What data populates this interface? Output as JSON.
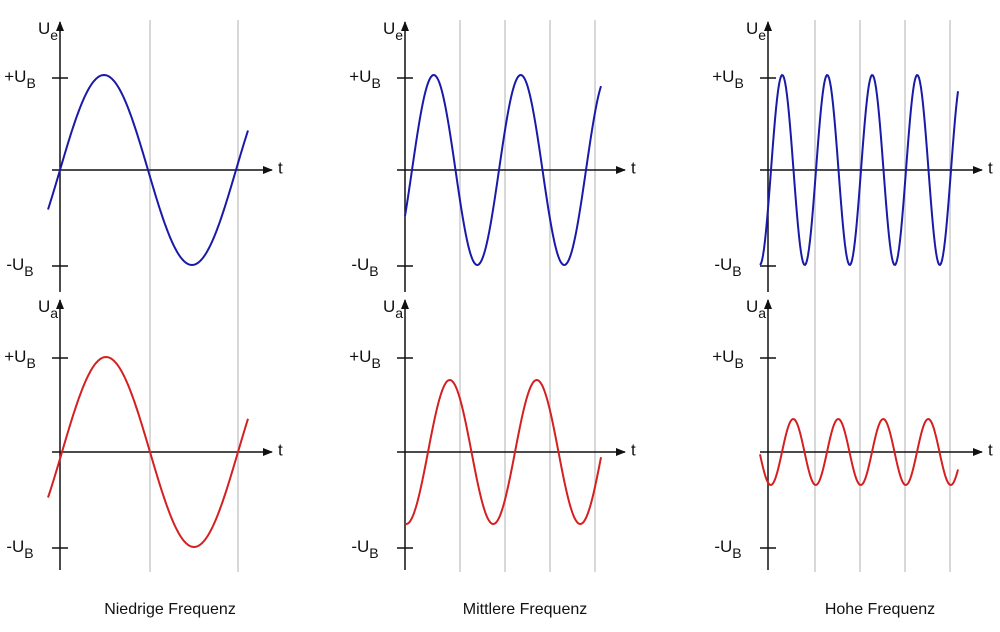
{
  "columns": [
    {
      "caption": "Niedrige Frequenz",
      "input": {
        "axis_label": {
          "main": "U",
          "sub": "e"
        },
        "top_label": {
          "main": "+U",
          "sub": "B"
        },
        "bottom_label": {
          "main": "-U",
          "sub": "B"
        },
        "time_label": "t"
      },
      "output": {
        "axis_label": {
          "main": "U",
          "sub": "a"
        },
        "top_label": {
          "main": "+U",
          "sub": "B"
        },
        "bottom_label": {
          "main": "-U",
          "sub": "B"
        },
        "time_label": "t"
      }
    },
    {
      "caption": "Mittlere Frequenz",
      "input": {
        "axis_label": {
          "main": "U",
          "sub": "e"
        },
        "top_label": {
          "main": "+U",
          "sub": "B"
        },
        "bottom_label": {
          "main": "-U",
          "sub": "B"
        },
        "time_label": "t"
      },
      "output": {
        "axis_label": {
          "main": "U",
          "sub": "a"
        },
        "top_label": {
          "main": "+U",
          "sub": "B"
        },
        "bottom_label": {
          "main": "-U",
          "sub": "B"
        },
        "time_label": "t"
      }
    },
    {
      "caption": "Hohe Frequenz",
      "input": {
        "axis_label": {
          "main": "U",
          "sub": "e"
        },
        "top_label": {
          "main": "+U",
          "sub": "B"
        },
        "bottom_label": {
          "main": "-U",
          "sub": "B"
        },
        "time_label": "t"
      },
      "output": {
        "axis_label": {
          "main": "U",
          "sub": "a"
        },
        "top_label": {
          "main": "+U",
          "sub": "B"
        },
        "bottom_label": {
          "main": "-U",
          "sub": "B"
        },
        "time_label": "t"
      }
    }
  ]
}
